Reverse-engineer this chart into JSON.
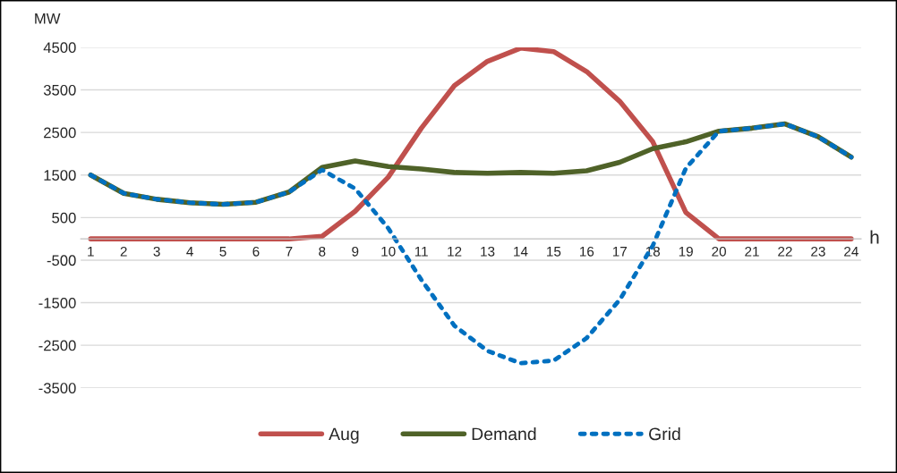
{
  "chart_data": {
    "type": "line",
    "xlabel": "h",
    "ylabel": "MW",
    "categories": [
      "1",
      "2",
      "3",
      "4",
      "5",
      "6",
      "7",
      "8",
      "9",
      "10",
      "11",
      "12",
      "13",
      "14",
      "15",
      "16",
      "17",
      "18",
      "19",
      "20",
      "21",
      "22",
      "23",
      "24"
    ],
    "series": [
      {
        "name": "Aug",
        "color": "#c0504d",
        "line_style": "solid",
        "values": [
          0,
          0,
          0,
          0,
          0,
          0,
          0,
          60,
          650,
          1450,
          2600,
          3600,
          4170,
          4480,
          4400,
          3930,
          3230,
          2280,
          620,
          0,
          0,
          0,
          0,
          0
        ]
      },
      {
        "name": "Demand",
        "color": "#4f6228",
        "line_style": "solid",
        "values": [
          1500,
          1070,
          930,
          850,
          810,
          860,
          1100,
          1680,
          1830,
          1700,
          1640,
          1560,
          1540,
          1560,
          1540,
          1600,
          1800,
          2120,
          2280,
          2530,
          2600,
          2700,
          2400,
          1920
        ]
      },
      {
        "name": "Grid",
        "color": "#0070c0",
        "line_style": "dotted",
        "values": [
          1500,
          1070,
          930,
          850,
          810,
          860,
          1100,
          1620,
          1180,
          250,
          -960,
          -2040,
          -2630,
          -2920,
          -2860,
          -2330,
          -1430,
          -160,
          1660,
          2530,
          2600,
          2700,
          2400,
          1920
        ]
      }
    ],
    "ylim": [
      -3500,
      4500
    ],
    "yticks": [
      -3500,
      -2500,
      -1500,
      -500,
      500,
      1500,
      2500,
      3500,
      4500
    ],
    "grid": "y",
    "legend": "bottom",
    "marker": "none"
  }
}
